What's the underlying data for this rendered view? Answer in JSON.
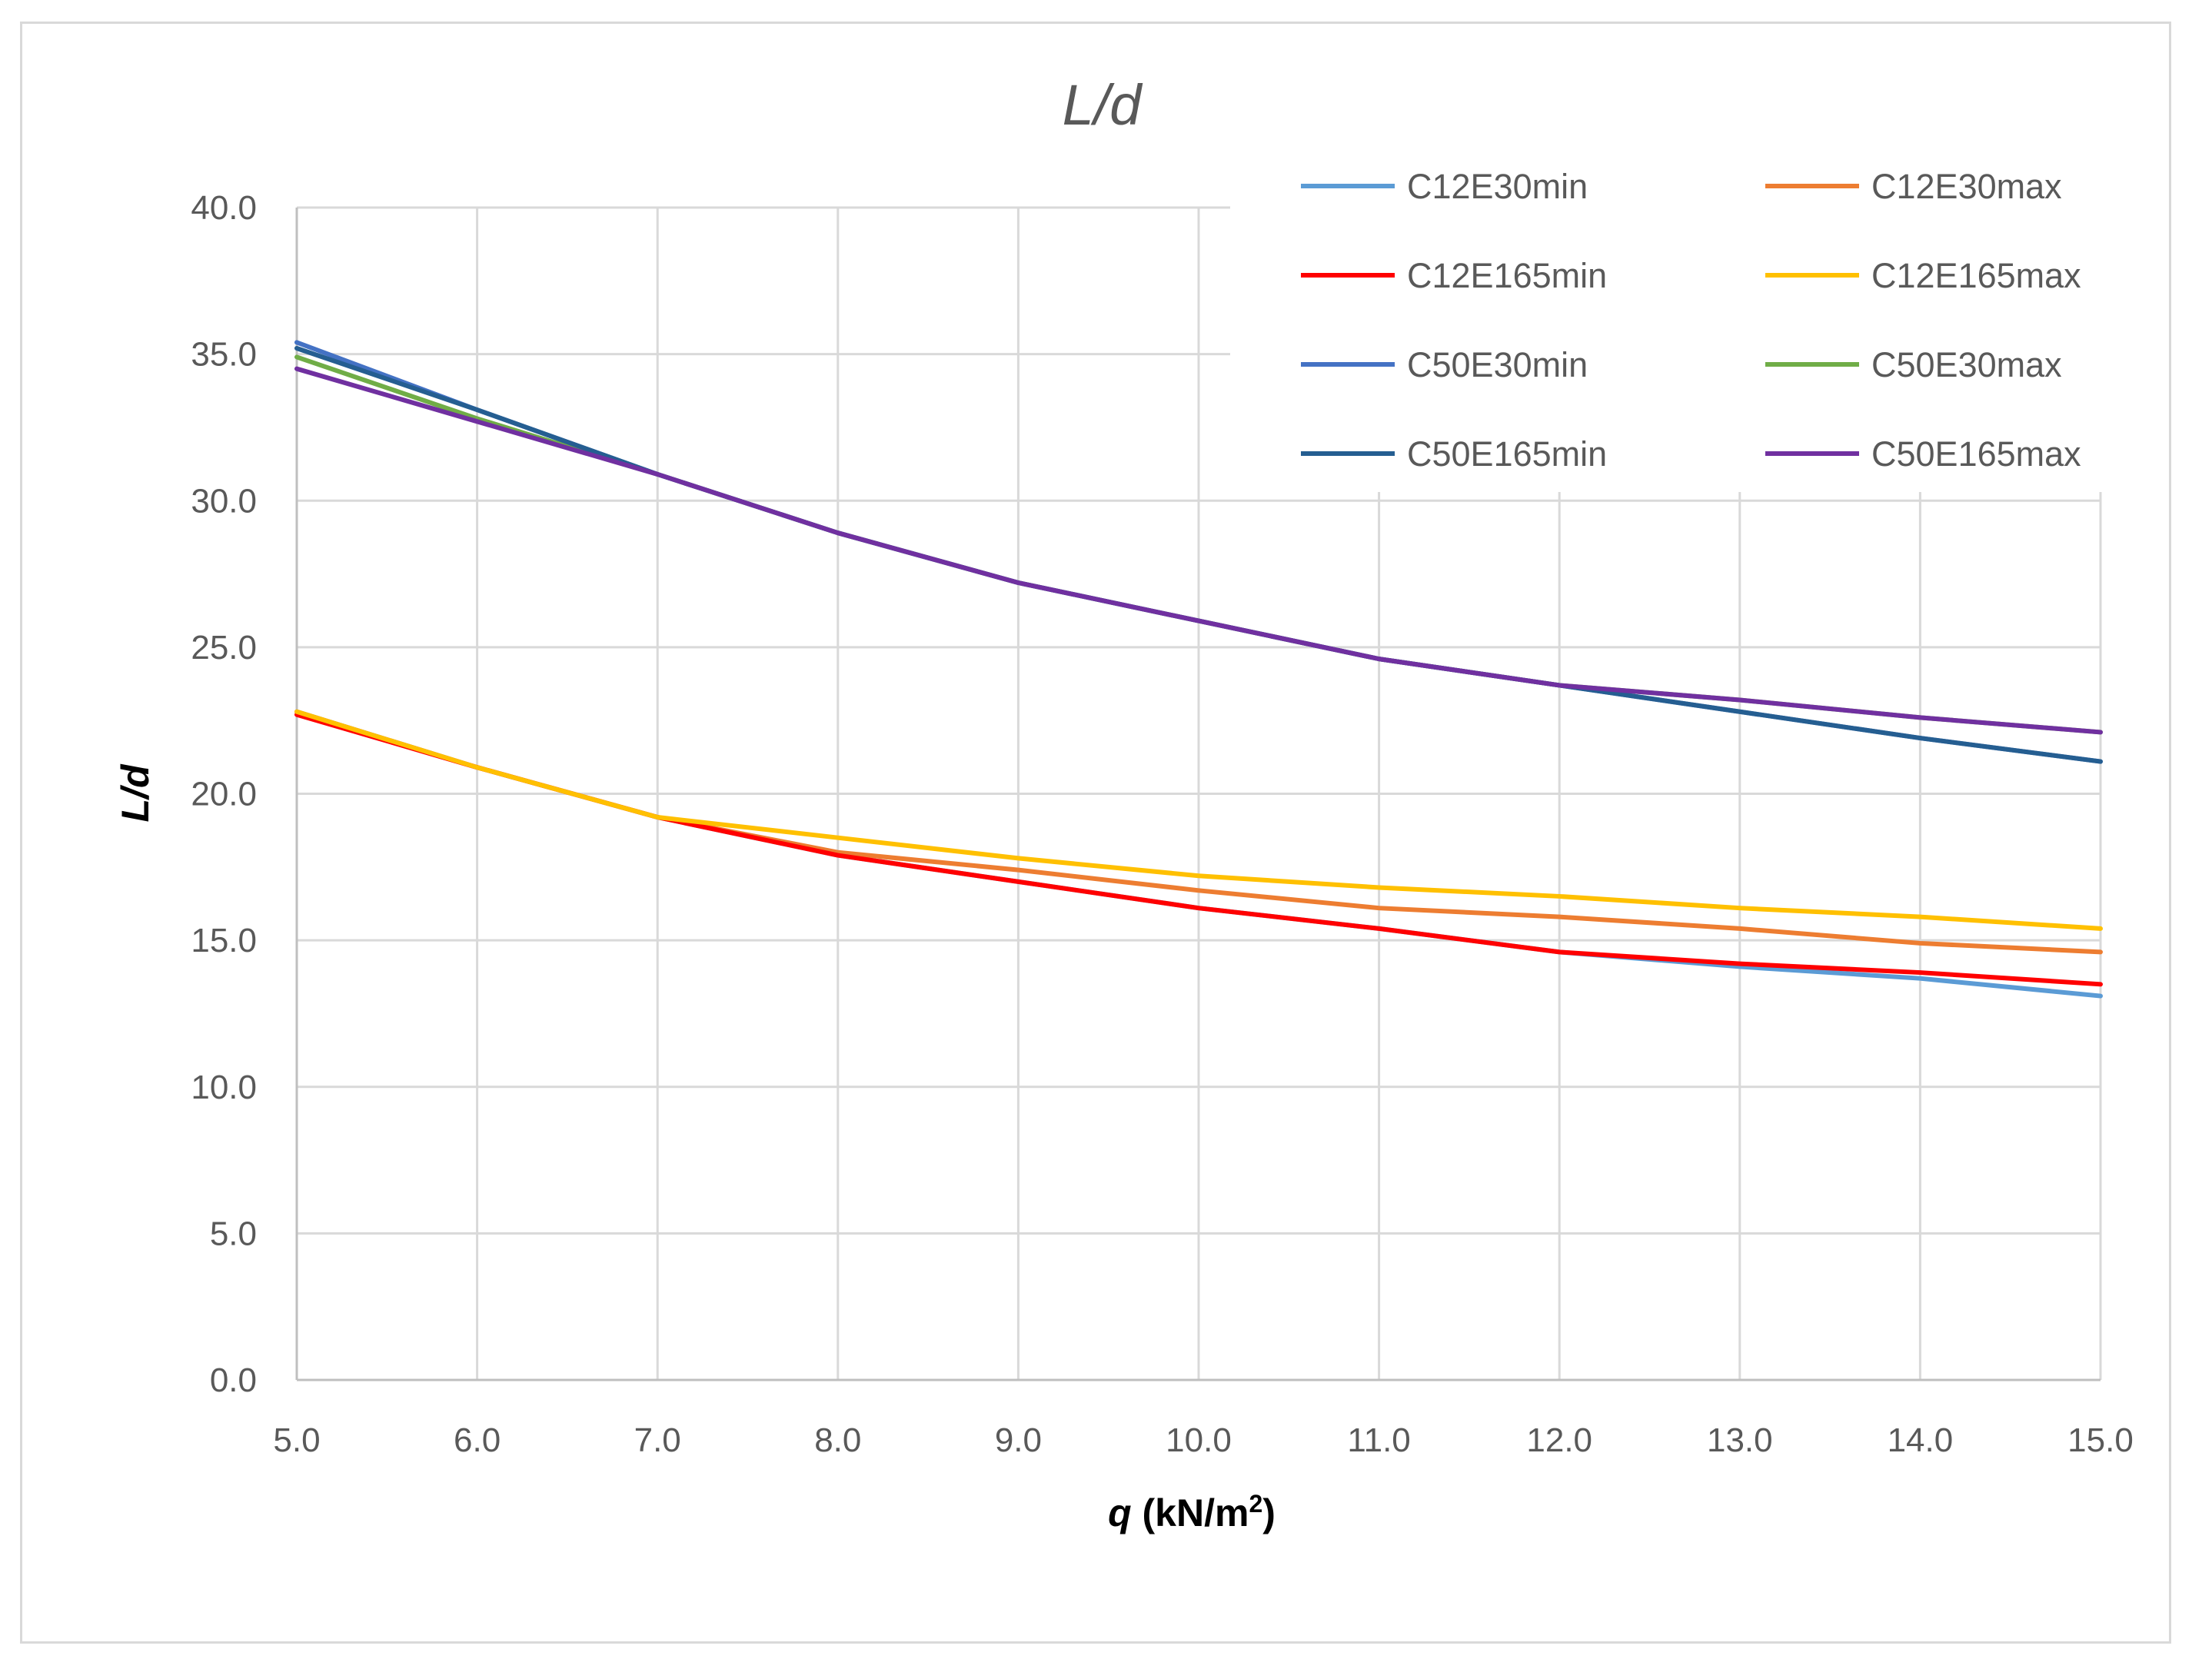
{
  "chart_data": {
    "type": "line",
    "title": "L/d",
    "xlabel": {
      "var": "q",
      "unit_pre": " (kN/m",
      "sup": "2",
      "unit_post": ")"
    },
    "ylabel": "L/d",
    "xlim": [
      5.0,
      15.0
    ],
    "ylim": [
      0.0,
      40.0
    ],
    "x_ticks": [
      "5.0",
      "6.0",
      "7.0",
      "8.0",
      "9.0",
      "10.0",
      "11.0",
      "12.0",
      "13.0",
      "14.0",
      "15.0"
    ],
    "y_ticks": [
      "0.0",
      "5.0",
      "10.0",
      "15.0",
      "20.0",
      "25.0",
      "30.0",
      "35.0",
      "40.0"
    ],
    "grid": true,
    "legend_position": "top-right",
    "x": [
      5,
      6,
      7,
      8,
      9,
      10,
      11,
      12,
      13,
      14,
      15
    ],
    "series": [
      {
        "name": "C12E30min",
        "color": "#5b9bd5",
        "values": [
          22.8,
          20.9,
          19.2,
          17.9,
          17.0,
          16.1,
          15.4,
          14.6,
          14.1,
          13.7,
          13.1
        ]
      },
      {
        "name": "C12E30max",
        "color": "#ed7d31",
        "values": [
          22.8,
          20.9,
          19.2,
          18.0,
          17.4,
          16.7,
          16.1,
          15.8,
          15.4,
          14.9,
          14.6
        ]
      },
      {
        "name": "C12E165min",
        "color": "#ff0000",
        "values": [
          22.7,
          20.9,
          19.2,
          17.9,
          17.0,
          16.1,
          15.4,
          14.6,
          14.2,
          13.9,
          13.5
        ]
      },
      {
        "name": "C12E165max",
        "color": "#ffc000",
        "values": [
          22.8,
          20.9,
          19.2,
          18.5,
          17.8,
          17.2,
          16.8,
          16.5,
          16.1,
          15.8,
          15.4
        ]
      },
      {
        "name": "C50E30min",
        "color": "#4472c4",
        "values": [
          35.4,
          33.1,
          30.9,
          28.9,
          27.2,
          25.9,
          24.6,
          23.7,
          22.8,
          21.9,
          21.1
        ]
      },
      {
        "name": "C50E30max",
        "color": "#70ad47",
        "values": [
          34.9,
          32.8,
          30.9,
          28.9,
          27.2,
          25.9,
          24.6,
          23.7,
          23.2,
          22.6,
          22.1
        ]
      },
      {
        "name": "C50E165min",
        "color": "#255e91",
        "values": [
          35.2,
          33.1,
          30.9,
          28.9,
          27.2,
          25.9,
          24.6,
          23.7,
          22.8,
          21.9,
          21.1
        ]
      },
      {
        "name": "C50E165max",
        "color": "#7030a0",
        "values": [
          34.5,
          32.7,
          30.9,
          28.9,
          27.2,
          25.9,
          24.6,
          23.7,
          23.2,
          22.6,
          22.1
        ]
      }
    ]
  }
}
